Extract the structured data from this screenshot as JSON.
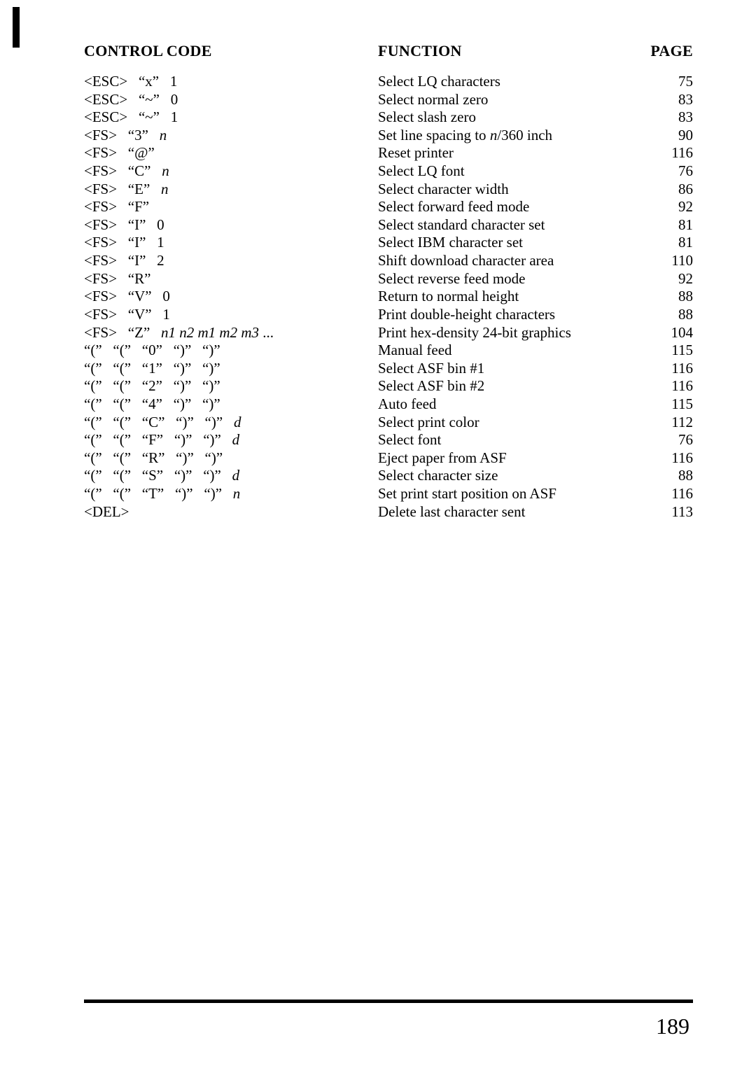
{
  "headers": {
    "code": "CONTROL CODE",
    "func": "FUNCTION",
    "page": "PAGE"
  },
  "rows": [
    {
      "code": "<ESC>   “x”   1",
      "func": "Select LQ characters",
      "page": "75"
    },
    {
      "code": "<ESC>   “~”   0",
      "func": "Select normal zero",
      "page": "83"
    },
    {
      "code": "<ESC>   “~”   1",
      "func": "Select slash zero",
      "page": "83"
    },
    {
      "code": "<FS>   “3”   ",
      "trail_it": "n",
      "func": "Set line spacing to ",
      "func_it": "n",
      "func_after": "/360 inch",
      "page": "90"
    },
    {
      "code": "<FS>   “@”",
      "func": "Reset printer",
      "page": "116"
    },
    {
      "code": "<FS>   “C”   ",
      "trail_it": "n",
      "func": "Select LQ font",
      "page": "76"
    },
    {
      "code": "<FS>   “E”   ",
      "trail_it": "n",
      "func": "Select character width",
      "page": "86"
    },
    {
      "code": "<FS>   “F”",
      "func": "Select forward feed mode",
      "page": "92"
    },
    {
      "code": "<FS>   “I”   0",
      "func": "Select standard character set",
      "page": "81"
    },
    {
      "code": "<FS>   “I”   1",
      "func": "Select IBM character set",
      "page": "81"
    },
    {
      "code": "<FS>   “I”   2",
      "func": "Shift download character area",
      "page": "110"
    },
    {
      "code": "<FS>   “R”",
      "func": "Select reverse feed mode",
      "page": "92"
    },
    {
      "code": "<FS>   “V”   0",
      "func": "Return to normal height",
      "page": "88"
    },
    {
      "code": "<FS>   “V”   1",
      "func": "Print double-height characters",
      "page": "88"
    },
    {
      "code": "<FS>   “Z”   ",
      "trail_it": "n1 n2 m1 m2 m3",
      "trail_after": " ...",
      "func": "Print hex-density 24-bit graphics",
      "page": "104"
    },
    {
      "code": "“(”   “(”   “0”   “)”   “)”",
      "func": "Manual feed",
      "page": "115"
    },
    {
      "code": "“(”   “(”   “1”   “)”   “)”",
      "func": "Select ASF bin #1",
      "page": "116"
    },
    {
      "code": "“(”   “(”   “2”   “)”   “)”",
      "func": "Select ASF bin #2",
      "page": "116"
    },
    {
      "code": "“(”   “(”   “4”   “)”   “)”",
      "func": "Auto feed",
      "page": "115"
    },
    {
      "code": "“(”   “(”   “C”   “)”   “)”   ",
      "trail_it": "d",
      "func": "Select print color",
      "page": "112"
    },
    {
      "code": "“(”   “(”   “F”   “)”   “)”   ",
      "trail_it": "d",
      "func": "Select font",
      "page": "76"
    },
    {
      "code": "“(”   “(”   “R”   “)”   “)”",
      "func": "Eject paper from ASF",
      "page": "116"
    },
    {
      "code": "“(”   “(”   “S”   “)”   “)”   ",
      "trail_it": "d",
      "func": "Select character size",
      "page": "88"
    },
    {
      "code": "“(”   “(”   “T”   “)”   “)”   ",
      "trail_it": "n",
      "func": "Set print start position on ASF",
      "page": "116"
    },
    {
      "code": "<DEL>",
      "func": "Delete last character sent",
      "page": "113"
    }
  ],
  "page_number": "189"
}
